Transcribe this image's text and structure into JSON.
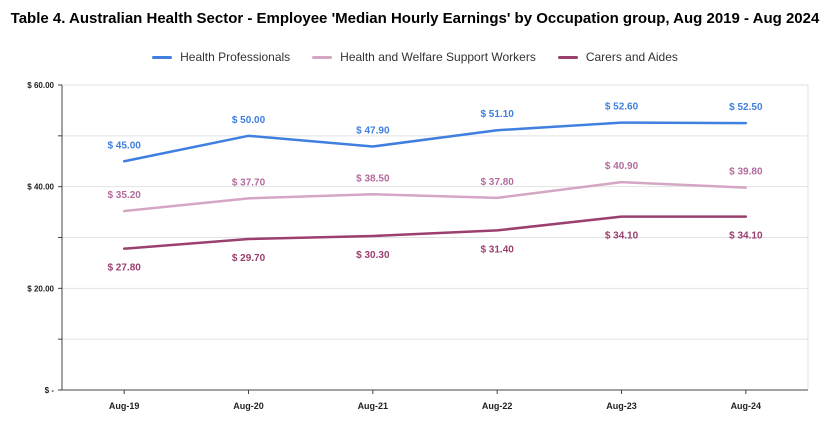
{
  "chart_data": {
    "type": "line",
    "title": "Table 4. Australian Health Sector - Employee 'Median Hourly Earnings' by Occupation group, Aug 2019 - Aug 2024",
    "xlabel": "",
    "ylabel": "",
    "categories": [
      "Aug-19",
      "Aug-20",
      "Aug-21",
      "Aug-22",
      "Aug-23",
      "Aug-24"
    ],
    "ylim": [
      0,
      60
    ],
    "yticks": [
      {
        "value": 0,
        "label": "$ -"
      },
      {
        "value": 20,
        "label": "$ 20.00"
      },
      {
        "value": 40,
        "label": "$ 40.00"
      },
      {
        "value": 60,
        "label": "$ 60.00"
      }
    ],
    "grid": true,
    "legend": "top-center",
    "series": [
      {
        "name": "Health Professionals",
        "color": "#3f7fe0",
        "label_color": "#3f7fe0",
        "label_position": "above",
        "values": [
          45.0,
          50.0,
          47.9,
          51.1,
          52.6,
          52.5
        ],
        "labels": [
          "$ 45.00",
          "$ 50.00",
          "$ 47.90",
          "$ 51.10",
          "$ 52.60",
          "$ 52.50"
        ]
      },
      {
        "name": "Health and Welfare Support Workers",
        "color": "#d4a6c4",
        "label_color": "#b36b9b",
        "label_position": "above",
        "values": [
          35.2,
          37.7,
          38.5,
          37.8,
          40.9,
          39.8
        ],
        "labels": [
          "$ 35.20",
          "$ 37.70",
          "$ 38.50",
          "$ 37.80",
          "$ 40.90",
          "$ 39.80"
        ]
      },
      {
        "name": "Carers and Aides",
        "color": "#9b3f6e",
        "label_color": "#9b3f6e",
        "label_position": "below",
        "values": [
          27.8,
          29.7,
          30.3,
          31.4,
          34.1,
          34.1
        ],
        "labels": [
          "$ 27.80",
          "$ 29.70",
          "$ 30.30",
          "$ 31.40",
          "$ 34.10",
          "$ 34.10"
        ]
      }
    ]
  }
}
